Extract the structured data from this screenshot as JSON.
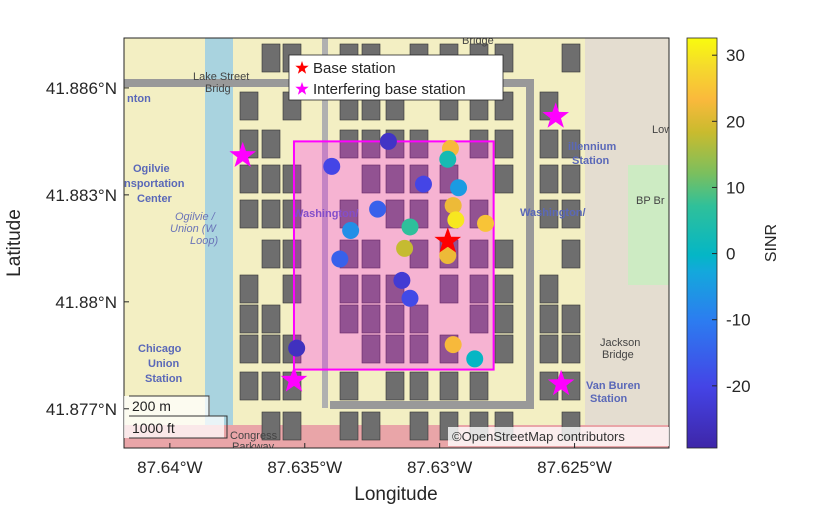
{
  "chart_data": {
    "type": "scatter",
    "map_type": "geographic",
    "xlabel": "Longitude",
    "ylabel": "Latitude",
    "xlim": [
      -87.6417,
      -87.6215
    ],
    "ylim": [
      41.8759,
      41.8874
    ],
    "xticks": [
      -87.64,
      -87.635,
      -87.63,
      -87.625
    ],
    "xtick_labels": [
      "87.64°W",
      "87.635°W",
      "87.63°W",
      "87.625°W"
    ],
    "yticks": [
      41.886,
      41.883,
      41.88,
      41.877
    ],
    "ytick_labels": [
      "41.886°N",
      "41.883°N",
      "41.88°N",
      "41.877°N"
    ],
    "legend": {
      "placement": "top",
      "entries": [
        {
          "label": "Base station",
          "color": "#ff0000",
          "marker": "star"
        },
        {
          "label": "Interfering base station",
          "color": "#ff00ff",
          "marker": "star"
        }
      ]
    },
    "base_station": {
      "lon": -87.6297,
      "lat": 41.8817
    },
    "interfering_base_stations": [
      {
        "lon": -87.6257,
        "lat": 41.8852
      },
      {
        "lon": -87.6373,
        "lat": 41.8841
      },
      {
        "lon": -87.6354,
        "lat": 41.8778
      },
      {
        "lon": -87.6255,
        "lat": 41.8777
      }
    ],
    "analysis_region": {
      "lon_min": -87.6354,
      "lon_max": -87.628,
      "lat_min": 41.8781,
      "lat_max": 41.8845,
      "color": "#ff00ff"
    },
    "receivers": [
      {
        "lon": -87.6319,
        "lat": 41.8845,
        "sinr": -25
      },
      {
        "lon": -87.6296,
        "lat": 41.8843,
        "sinr": 23
      },
      {
        "lon": -87.6297,
        "lat": 41.884,
        "sinr": 3
      },
      {
        "lon": -87.634,
        "lat": 41.8838,
        "sinr": -20
      },
      {
        "lon": -87.6306,
        "lat": 41.8833,
        "sinr": -20
      },
      {
        "lon": -87.6293,
        "lat": 41.8832,
        "sinr": -5
      },
      {
        "lon": -87.6323,
        "lat": 41.8826,
        "sinr": -15
      },
      {
        "lon": -87.6295,
        "lat": 41.8827,
        "sinr": 22
      },
      {
        "lon": -87.6294,
        "lat": 41.8823,
        "sinr": 30
      },
      {
        "lon": -87.6283,
        "lat": 41.8822,
        "sinr": 25
      },
      {
        "lon": -87.6333,
        "lat": 41.882,
        "sinr": -7
      },
      {
        "lon": -87.6311,
        "lat": 41.8821,
        "sinr": 7
      },
      {
        "lon": -87.6313,
        "lat": 41.8815,
        "sinr": 18
      },
      {
        "lon": -87.6297,
        "lat": 41.8813,
        "sinr": 22
      },
      {
        "lon": -87.6337,
        "lat": 41.8812,
        "sinr": -15
      },
      {
        "lon": -87.6314,
        "lat": 41.8806,
        "sinr": -23
      },
      {
        "lon": -87.6311,
        "lat": 41.8801,
        "sinr": -19
      },
      {
        "lon": -87.6353,
        "lat": 41.8787,
        "sinr": -26
      },
      {
        "lon": -87.6295,
        "lat": 41.8788,
        "sinr": 23
      },
      {
        "lon": -87.6287,
        "lat": 41.8784,
        "sinr": 0
      }
    ],
    "colorbar": {
      "label": "SINR",
      "colormap": "parula",
      "clim": [
        -29.4,
        32.6
      ],
      "ticks": [
        30,
        20,
        10,
        0,
        -10,
        -20
      ],
      "tick_labels": [
        "30",
        "20",
        "10",
        "0",
        "-10",
        "-20"
      ]
    }
  },
  "map": {
    "attribution": "©OpenStreetMap contributors",
    "scale_bar": {
      "metric": "200 m",
      "imperial": "1000 ft"
    },
    "labels": [
      {
        "text": "Bridge",
        "style": "d"
      },
      {
        "text": "Lake Street",
        "style": "d"
      },
      {
        "text": "Bridg",
        "style": "d"
      },
      {
        "text": "nton",
        "style": "b"
      },
      {
        "text": "Ogilvie",
        "style": "b"
      },
      {
        "text": "nsportation",
        "style": "b"
      },
      {
        "text": "Center",
        "style": "b"
      },
      {
        "text": "Ogilvie /",
        "style": "i"
      },
      {
        "text": "Union (W",
        "style": "i"
      },
      {
        "text": "Loop)",
        "style": "i"
      },
      {
        "text": "Washington/",
        "style": "b"
      },
      {
        "text": "illennium",
        "style": "b"
      },
      {
        "text": "Station",
        "style": "b"
      },
      {
        "text": "BP Br",
        "style": "d"
      },
      {
        "text": "Washington/",
        "style": "b"
      },
      {
        "text": "Low",
        "style": "d"
      },
      {
        "text": "Chicago",
        "style": "b"
      },
      {
        "text": "Union",
        "style": "b"
      },
      {
        "text": "Station",
        "style": "b"
      },
      {
        "text": "Jackson",
        "style": "d"
      },
      {
        "text": "Bridge",
        "style": "d"
      },
      {
        "text": "Van Buren",
        "style": "b"
      },
      {
        "text": "Station",
        "style": "b"
      },
      {
        "text": "Congress",
        "style": "d"
      },
      {
        "text": "Parkway",
        "style": "d"
      }
    ]
  }
}
